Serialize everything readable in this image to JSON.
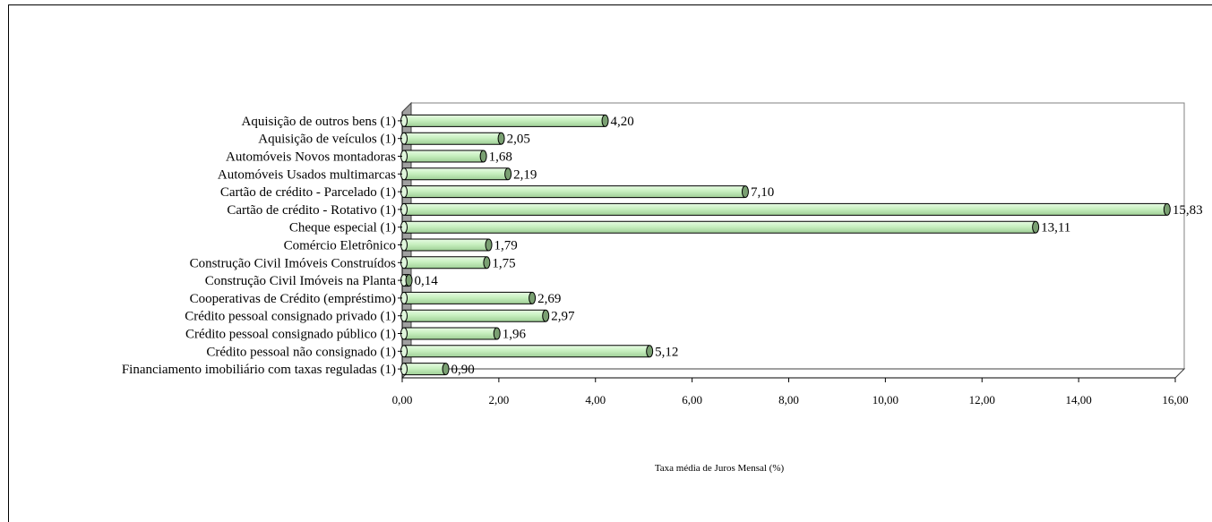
{
  "chart_data": {
    "type": "bar",
    "orientation": "horizontal",
    "categories": [
      "Aquisição de outros bens (1)",
      "Aquisição de veículos (1)",
      "Automóveis Novos montadoras",
      "Automóveis Usados multimarcas",
      "Cartão de crédito - Parcelado (1)",
      "Cartão de crédito - Rotativo (1)",
      "Cheque especial (1)",
      "Comércio Eletrônico",
      "Construção Civil Imóveis Construídos",
      "Construção Civil Imóveis na Planta",
      "Cooperativas de Crédito (empréstimo)",
      "Crédito pessoal consignado privado (1)",
      "Crédito pessoal consignado público (1)",
      "Crédito pessoal não consignado (1)",
      "Financiamento imobiliário com taxas reguladas (1)"
    ],
    "values": [
      4.2,
      2.05,
      1.68,
      2.19,
      7.1,
      15.83,
      13.11,
      1.79,
      1.75,
      0.14,
      2.69,
      2.97,
      1.96,
      5.12,
      0.9
    ],
    "value_labels": [
      "4,20",
      "2,05",
      "1,68",
      "2,19",
      "7,10",
      "15,83",
      "13,11",
      "1,79",
      "1,75",
      "0,14",
      "2,69",
      "2,97",
      "1,96",
      "5,12",
      "0,90"
    ],
    "xlabel": "Taxa média de Juros Mensal (%)",
    "xlim": [
      0,
      16
    ],
    "xticks": [
      "0,00",
      "2,00",
      "4,00",
      "6,00",
      "8,00",
      "10,00",
      "12,00",
      "14,00",
      "16,00"
    ],
    "grid": true,
    "bar_color": "#c8f0c0",
    "bar_edge_color": "#000000",
    "cap_color": "#7aa072"
  }
}
